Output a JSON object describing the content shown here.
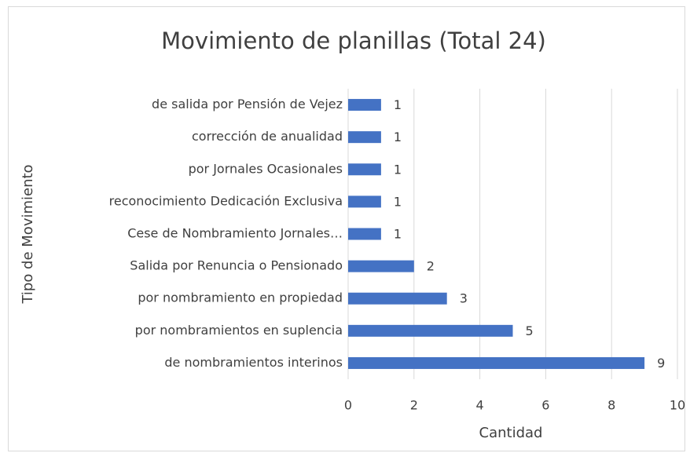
{
  "chart_data": {
    "type": "bar",
    "orientation": "horizontal",
    "title": "Movimiento de planillas (Total 24)",
    "x_label": "Cantidad",
    "y_label": "Tipo de Movimiento",
    "categories": [
      "de salida por Pensión de Vejez",
      "corrección de anualidad",
      "por Jornales Ocasionales",
      "reconocimiento Dedicación Exclusiva",
      "Cese de Nombramiento Jornales…",
      "Salida por Renuncia o Pensionado",
      "por nombramiento en propiedad",
      "por nombramientos en suplencia",
      "de nombramientos interinos"
    ],
    "values": [
      1,
      1,
      1,
      1,
      1,
      2,
      3,
      5,
      9
    ],
    "color": "#4472c4",
    "xlim": [
      0,
      10
    ],
    "xticks": [
      0,
      2,
      4,
      6,
      8,
      10
    ],
    "grid": true
  }
}
